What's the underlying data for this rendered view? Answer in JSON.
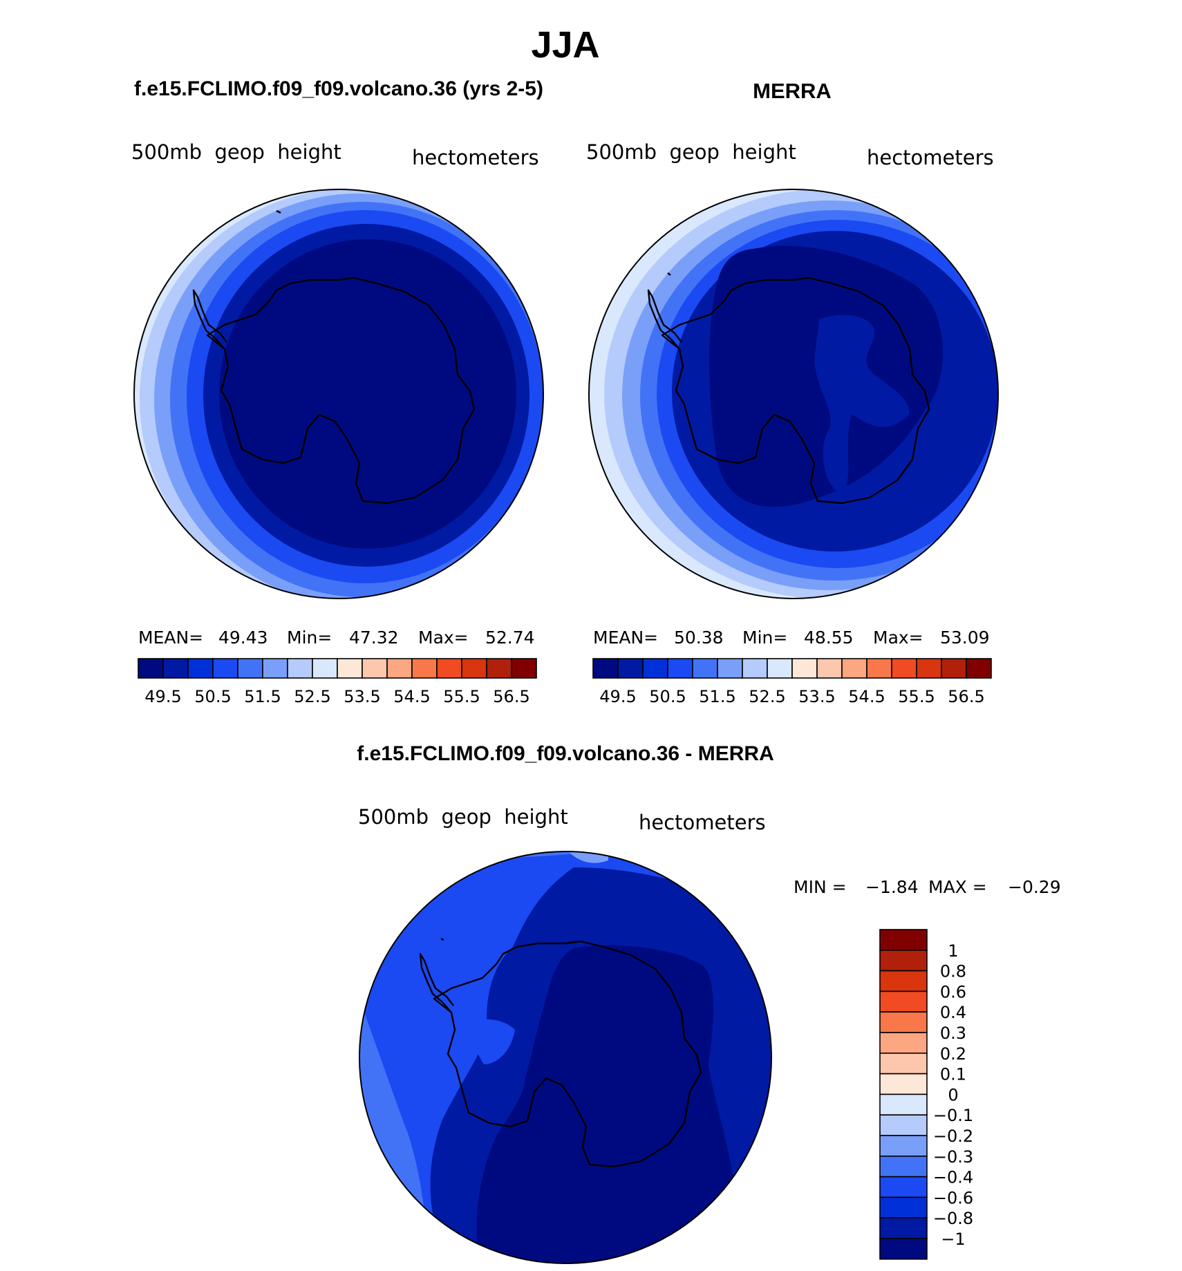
{
  "figure": {
    "season_title": "JJA",
    "left_panel_title": "f.e15.FCLIMO.f09_f09.volcano.36 (yrs 2-5)",
    "right_panel_title": "MERRA",
    "diff_panel_title": "f.e15.FCLIMO.f09_f09.volcano.36 - MERRA"
  },
  "panels": {
    "model": {
      "variable": "500mb  geop  height",
      "units": "hectometers",
      "mean_label": "MEAN=",
      "mean": "49.43",
      "min_label": "Min=",
      "min": "47.32",
      "max_label": "Max=",
      "max": "52.74"
    },
    "obs": {
      "variable": "500mb  geop  height",
      "units": "hectometers",
      "mean_label": "MEAN=",
      "mean": "50.38",
      "min_label": "Min=",
      "min": "48.55",
      "max_label": "Max=",
      "max": "53.09"
    },
    "diff": {
      "variable": "500mb  geop  height",
      "units": "hectometers",
      "min_label": "MIN =",
      "min": "−1.84",
      "max_label": "MAX =",
      "max": "−0.29"
    }
  },
  "colorbars": {
    "absolute": {
      "colors": [
        "#000a80",
        "#001aa3",
        "#0030d8",
        "#1b4af2",
        "#4273f7",
        "#7a9ff9",
        "#b4cbfb",
        "#d9e8fd",
        "#fde8d8",
        "#fdc7ae",
        "#fca682",
        "#f8784a",
        "#f04b22",
        "#d9350f",
        "#b0200a",
        "#800000"
      ],
      "labels": [
        "49.5",
        "50.5",
        "51.5",
        "52.5",
        "53.5",
        "54.5",
        "55.5",
        "56.5"
      ]
    },
    "difference": {
      "colors_top_to_bottom": [
        "#800000",
        "#b0200a",
        "#d9350f",
        "#f04b22",
        "#f8784a",
        "#fca682",
        "#fdc7ae",
        "#fde8d8",
        "#d9e8fd",
        "#b4cbfb",
        "#7a9ff9",
        "#4273f7",
        "#1b4af2",
        "#0030d8",
        "#001aa3",
        "#000a80"
      ],
      "labels_top_to_bottom": [
        "1",
        "0.8",
        "0.6",
        "0.4",
        "0.3",
        "0.2",
        "0.1",
        "0",
        "−0.1",
        "−0.2",
        "−0.3",
        "−0.4",
        "−0.6",
        "−0.8",
        "−1"
      ]
    }
  }
}
